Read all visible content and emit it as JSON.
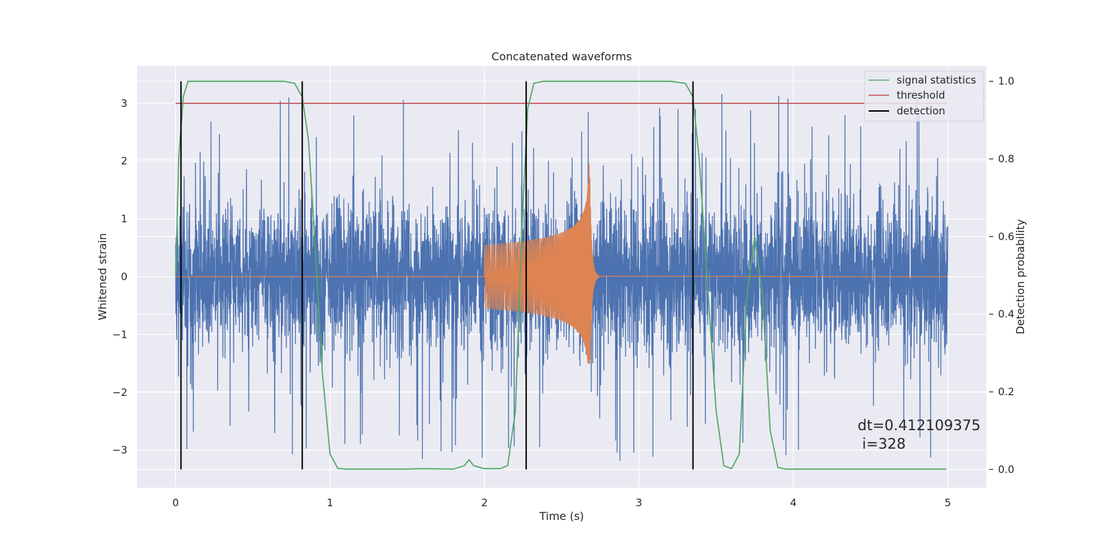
{
  "chart_data": {
    "type": "line",
    "title": "Concatenated waveforms",
    "xlabel": "Time (s)",
    "ylabel": "Whitened strain",
    "y2label": "Detection probability",
    "xlim": [
      -0.25,
      5.25
    ],
    "ylim": [
      -3.65,
      3.65
    ],
    "y2lim": [
      -0.047,
      1.04
    ],
    "x_ticks": [
      0,
      1,
      2,
      3,
      4,
      5
    ],
    "y_ticks": [
      -3,
      -2,
      -1,
      0,
      1,
      2,
      3
    ],
    "y2_ticks": [
      0.0,
      0.2,
      0.4,
      0.6,
      0.8,
      1.0
    ],
    "x_tick_labels": [
      "0",
      "1",
      "2",
      "3",
      "4",
      "5"
    ],
    "y_tick_labels": [
      "−3",
      "−2",
      "−1",
      "0",
      "1",
      "2",
      "3"
    ],
    "y2_tick_labels": [
      "0.0",
      "0.2",
      "0.4",
      "0.6",
      "0.8",
      "1.0"
    ],
    "grid": true,
    "legend_position": "top-right",
    "series": [
      {
        "name": "",
        "kind": "noise",
        "axis": "left",
        "color": "#4c72b0",
        "x_range": [
          0,
          5
        ],
        "amplitude_band": [
          -0.6,
          0.6
        ],
        "peak_range": [
          -3.3,
          3.2
        ]
      },
      {
        "name": "",
        "kind": "chirp",
        "axis": "left",
        "color": "#dd8452",
        "x_range": [
          0,
          5
        ],
        "chirp_start": 2.0,
        "chirp_merger": 2.68,
        "start_amplitude": 0.55,
        "peak_amplitude": [
          -1.5,
          2.15
        ]
      },
      {
        "name": "signal statistics",
        "axis": "right",
        "color": "#55a868",
        "x": [
          0.0,
          0.02,
          0.05,
          0.08,
          0.12,
          0.2,
          0.7,
          0.77,
          0.82,
          0.86,
          0.9,
          0.95,
          1.0,
          1.05,
          1.1,
          1.5,
          1.6,
          1.8,
          1.87,
          1.9,
          1.93,
          2.0,
          2.1,
          2.15,
          2.2,
          2.24,
          2.28,
          2.32,
          2.38,
          2.45,
          3.2,
          3.3,
          3.35,
          3.39,
          3.44,
          3.5,
          3.55,
          3.6,
          3.65,
          3.7,
          3.75,
          3.8,
          3.85,
          3.9,
          3.95,
          4.0,
          4.5,
          4.99
        ],
        "y": [
          0.5,
          0.8,
          0.96,
          1.0,
          1.0,
          1.0,
          1.0,
          0.995,
          0.96,
          0.85,
          0.6,
          0.25,
          0.04,
          0.003,
          0.001,
          0.001,
          0.002,
          0.001,
          0.01,
          0.025,
          0.01,
          0.002,
          0.002,
          0.01,
          0.15,
          0.6,
          0.93,
          0.995,
          1.0,
          1.0,
          1.0,
          0.995,
          0.96,
          0.8,
          0.5,
          0.15,
          0.01,
          0.002,
          0.04,
          0.45,
          0.6,
          0.45,
          0.1,
          0.005,
          0.001,
          0.001,
          0.001,
          0.001
        ]
      },
      {
        "name": "threshold",
        "axis": "left",
        "color": "#c44e52",
        "x": [
          0,
          5
        ],
        "y": [
          3,
          3
        ]
      },
      {
        "name": "detection",
        "axis": "right",
        "color": "#000000",
        "vlines": [
          0.035,
          0.82,
          2.27,
          3.35
        ],
        "ymin": 0.0,
        "ymax": 1.0
      }
    ],
    "annotation": {
      "line1": "dt=0.412109375",
      "line2": " i=328",
      "x": 4.5,
      "y": -2.85
    },
    "colors": {
      "plot_background": "#eaeaf2",
      "grid": "#ffffff",
      "text": "#262626"
    }
  }
}
